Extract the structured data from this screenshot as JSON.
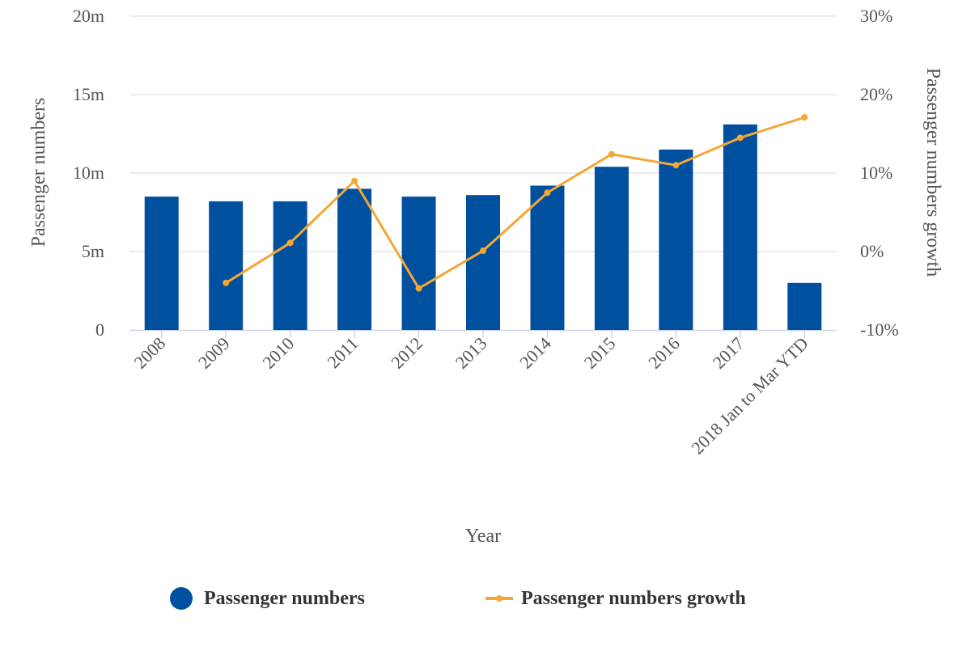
{
  "chart_data": {
    "type": "bar",
    "xlabel": "Year",
    "ylabel": "Passenger numbers",
    "y2label": "Passenger numbers growth",
    "categories": [
      "2008",
      "2009",
      "2010",
      "2011",
      "2012",
      "2013",
      "2014",
      "2015",
      "2016",
      "2017",
      "2018 Jan to Mar YTD"
    ],
    "ylim": [
      0,
      20
    ],
    "y_ticks": [
      "0",
      "5m",
      "10m",
      "15m",
      "20m"
    ],
    "y2lim": [
      -10,
      30
    ],
    "y2_ticks": [
      "-10%",
      "0%",
      "10%",
      "20%",
      "30%"
    ],
    "grid": true,
    "legend_position": "bottom",
    "series": [
      {
        "name": "Passenger numbers",
        "type": "bar",
        "axis": "left",
        "unit": "millions",
        "color": "#0050a0",
        "values": [
          8.5,
          8.2,
          8.2,
          9.0,
          8.5,
          8.6,
          9.2,
          10.4,
          11.5,
          13.1,
          3.0
        ]
      },
      {
        "name": "Passenger numbers growth",
        "type": "line",
        "axis": "right",
        "unit": "percent",
        "color": "#f5a733",
        "values": [
          null,
          -4.0,
          1.1,
          9.0,
          -4.7,
          0.1,
          7.5,
          12.4,
          11.0,
          14.5,
          17.1
        ]
      }
    ]
  }
}
